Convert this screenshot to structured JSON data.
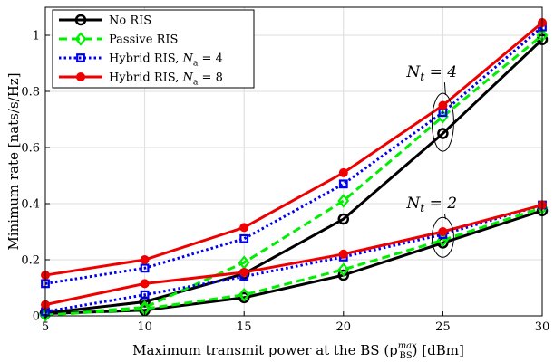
{
  "chart_data": {
    "type": "line",
    "xlabel": "Maximum transmit power at the BS (p",
    "xlabel_sup": "max",
    "xlabel_sub": "BS",
    "xlabel_tail": ") [dBm]",
    "ylabel": "Minimum rate [nats/s/Hz]",
    "xlim": [
      5,
      30
    ],
    "ylim": [
      0,
      1.1
    ],
    "x_ticks": [
      5,
      10,
      15,
      20,
      25,
      30
    ],
    "y_ticks": [
      0,
      0.2,
      0.4,
      0.6,
      0.8,
      1
    ],
    "grid": true,
    "legend_position": "top-left",
    "x": [
      5,
      10,
      15,
      20,
      25,
      30
    ],
    "series": [
      {
        "name": "No RIS",
        "group": "Nt=4",
        "color": "#000000",
        "marker": "circle",
        "dash": "solid",
        "values": [
          0.01,
          0.05,
          0.15,
          0.345,
          0.65,
          0.985
        ]
      },
      {
        "name": "Passive RIS",
        "group": "Nt=4",
        "color": "#00ee00",
        "marker": "diamond",
        "dash": "dashed",
        "values": [
          0.005,
          0.03,
          0.19,
          0.41,
          0.71,
          1.0
        ]
      },
      {
        "name": "Hybrid RIS, N_a = 4",
        "group": "Nt=4",
        "color": "#0000ee",
        "marker": "square",
        "dash": "dotted",
        "values": [
          0.115,
          0.17,
          0.275,
          0.47,
          0.725,
          1.03
        ]
      },
      {
        "name": "Hybrid RIS, N_a = 8",
        "group": "Nt=4",
        "color": "#ee0000",
        "marker": "dot",
        "dash": "solid",
        "values": [
          0.145,
          0.2,
          0.315,
          0.51,
          0.75,
          1.045
        ]
      },
      {
        "name": "No RIS",
        "group": "Nt=2",
        "color": "#000000",
        "marker": "circle",
        "dash": "solid",
        "values": [
          0.008,
          0.02,
          0.065,
          0.145,
          0.26,
          0.375
        ]
      },
      {
        "name": "Passive RIS",
        "group": "Nt=2",
        "color": "#00ee00",
        "marker": "diamond",
        "dash": "dashed",
        "values": [
          0.003,
          0.025,
          0.075,
          0.165,
          0.27,
          0.385
        ]
      },
      {
        "name": "Hybrid RIS, N_a = 4",
        "group": "Nt=2",
        "color": "#0000ee",
        "marker": "square",
        "dash": "dotted",
        "values": [
          0.015,
          0.075,
          0.14,
          0.21,
          0.29,
          0.395
        ]
      },
      {
        "name": "Hybrid RIS, N_a = 8",
        "group": "Nt=2",
        "color": "#ee0000",
        "marker": "dot",
        "dash": "solid",
        "values": [
          0.04,
          0.115,
          0.155,
          0.22,
          0.3,
          0.395
        ]
      }
    ],
    "legend": [
      {
        "label": "No RIS",
        "color": "#000000",
        "marker": "circle",
        "dash": "solid"
      },
      {
        "label": "Passive RIS",
        "color": "#00ee00",
        "marker": "diamond",
        "dash": "dashed"
      },
      {
        "label": "Hybrid RIS, ",
        "sym": "N",
        "sub": "a",
        "tail": " = 4",
        "color": "#0000ee",
        "marker": "square",
        "dash": "dotted"
      },
      {
        "label": "Hybrid RIS, ",
        "sym": "N",
        "sub": "a",
        "tail": " = 8",
        "color": "#ee0000",
        "marker": "dot",
        "dash": "solid"
      }
    ],
    "annotations": [
      {
        "sym": "N",
        "sub": "t",
        "tail": " = 4",
        "x": 25,
        "y": 0.69
      },
      {
        "sym": "N",
        "sub": "t",
        "tail": " = 2",
        "x": 25,
        "y": 0.28
      }
    ]
  }
}
